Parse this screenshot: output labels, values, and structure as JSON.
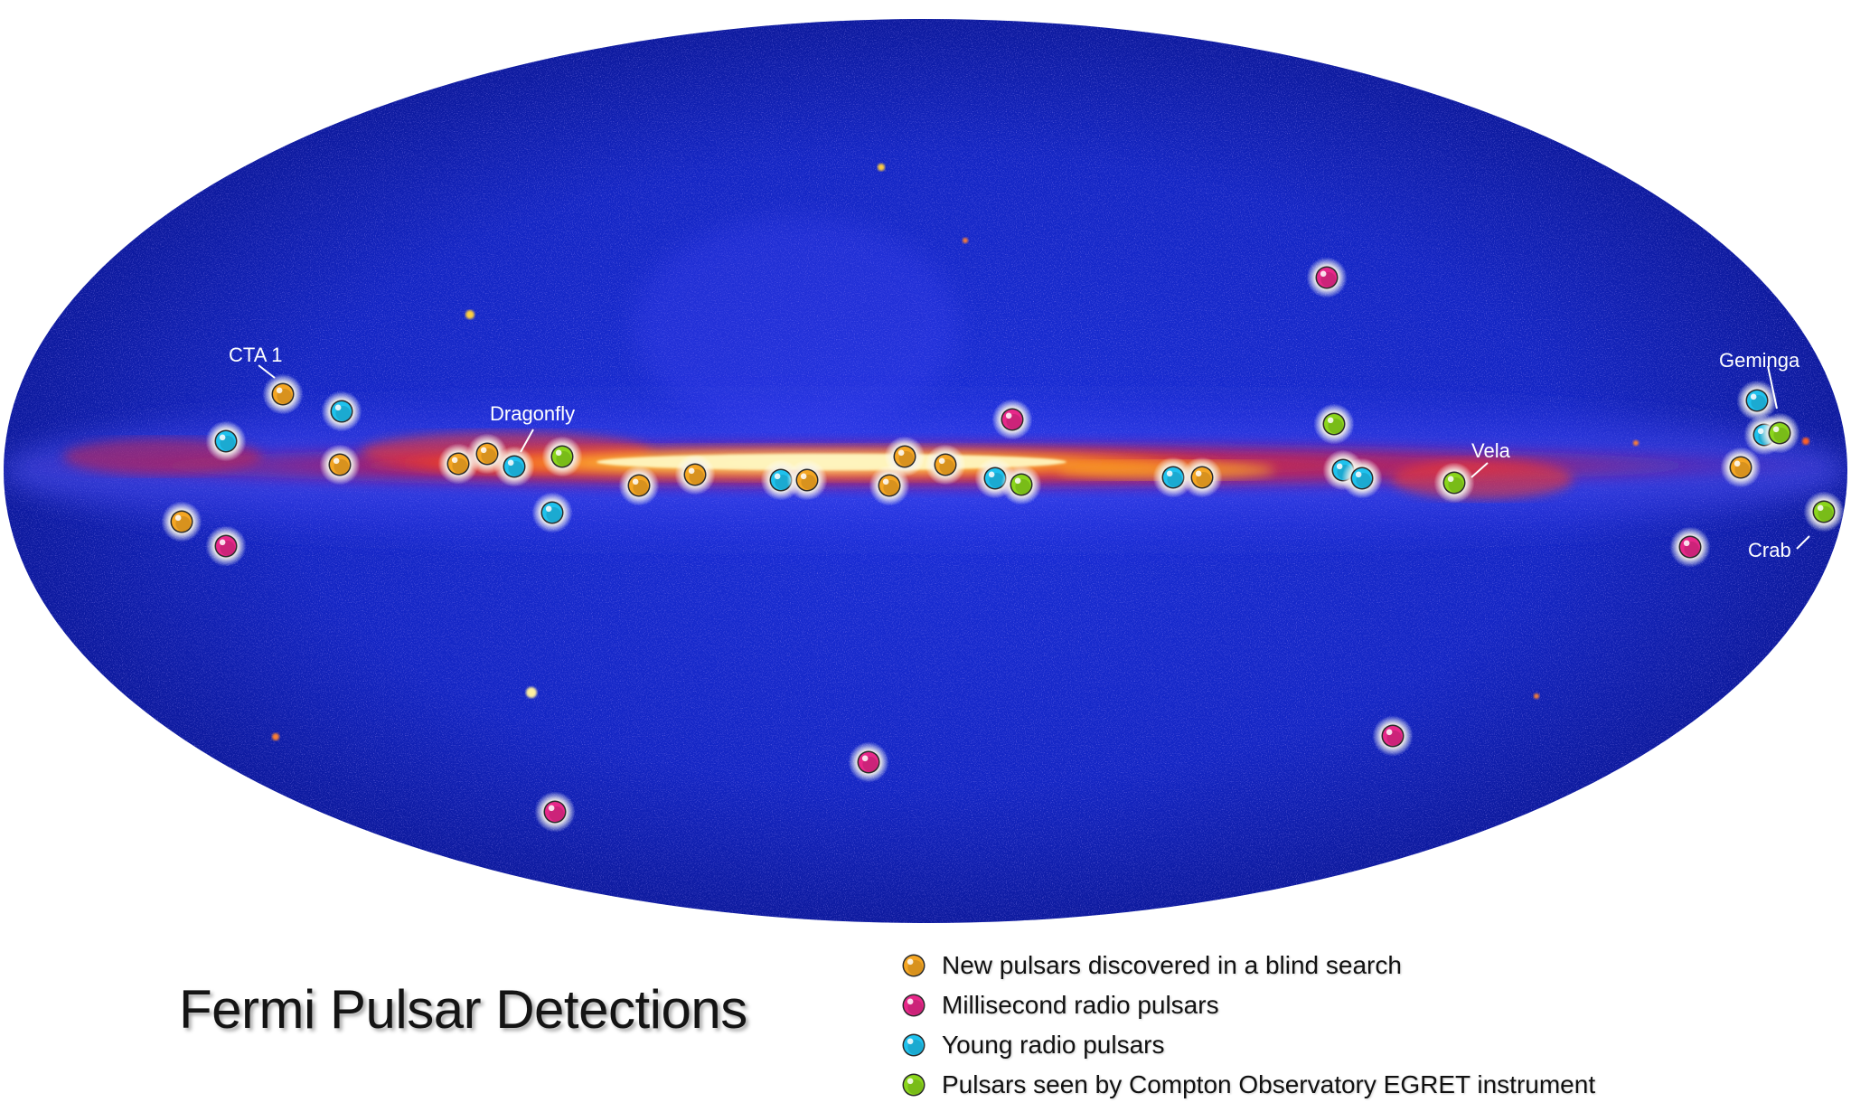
{
  "title": "Fermi Pulsar Detections",
  "colors": {
    "blind_search": "#f5a623",
    "millisecond": "#e8288a",
    "young": "#1fc2ee",
    "egret": "#8bd61c"
  },
  "callouts": [
    {
      "id": "cta1",
      "label": "CTA 1"
    },
    {
      "id": "dragonfly",
      "label": "Dragonfly"
    },
    {
      "id": "geminga",
      "label": "Geminga"
    },
    {
      "id": "vela",
      "label": "Vela"
    },
    {
      "id": "crab",
      "label": "Crab"
    }
  ],
  "legend": [
    {
      "category": "blind_search",
      "label": "New pulsars discovered in a blind search"
    },
    {
      "category": "millisecond",
      "label": "Millisecond radio pulsars"
    },
    {
      "category": "young",
      "label": "Young radio pulsars"
    },
    {
      "category": "egret",
      "label": "Pulsars seen by Compton Observatory EGRET instrument"
    }
  ],
  "pulsars": [
    {
      "category": "blind_search"
    },
    {
      "category": "young"
    },
    {
      "category": "young"
    },
    {
      "category": "blind_search"
    },
    {
      "category": "blind_search"
    },
    {
      "category": "millisecond"
    },
    {
      "category": "blind_search"
    },
    {
      "category": "blind_search"
    },
    {
      "category": "young"
    },
    {
      "category": "egret"
    },
    {
      "category": "young"
    },
    {
      "category": "blind_search"
    },
    {
      "category": "blind_search"
    },
    {
      "category": "young"
    },
    {
      "category": "blind_search"
    },
    {
      "category": "blind_search"
    },
    {
      "category": "blind_search"
    },
    {
      "category": "blind_search"
    },
    {
      "category": "millisecond"
    },
    {
      "category": "young"
    },
    {
      "category": "egret"
    },
    {
      "category": "young"
    },
    {
      "category": "blind_search"
    },
    {
      "category": "millisecond"
    },
    {
      "category": "egret"
    },
    {
      "category": "young"
    },
    {
      "category": "young"
    },
    {
      "category": "egret"
    },
    {
      "category": "young"
    },
    {
      "category": "young"
    },
    {
      "category": "egret"
    },
    {
      "category": "blind_search"
    },
    {
      "category": "egret"
    },
    {
      "category": "millisecond"
    },
    {
      "category": "millisecond"
    },
    {
      "category": "millisecond"
    },
    {
      "category": "millisecond"
    }
  ]
}
